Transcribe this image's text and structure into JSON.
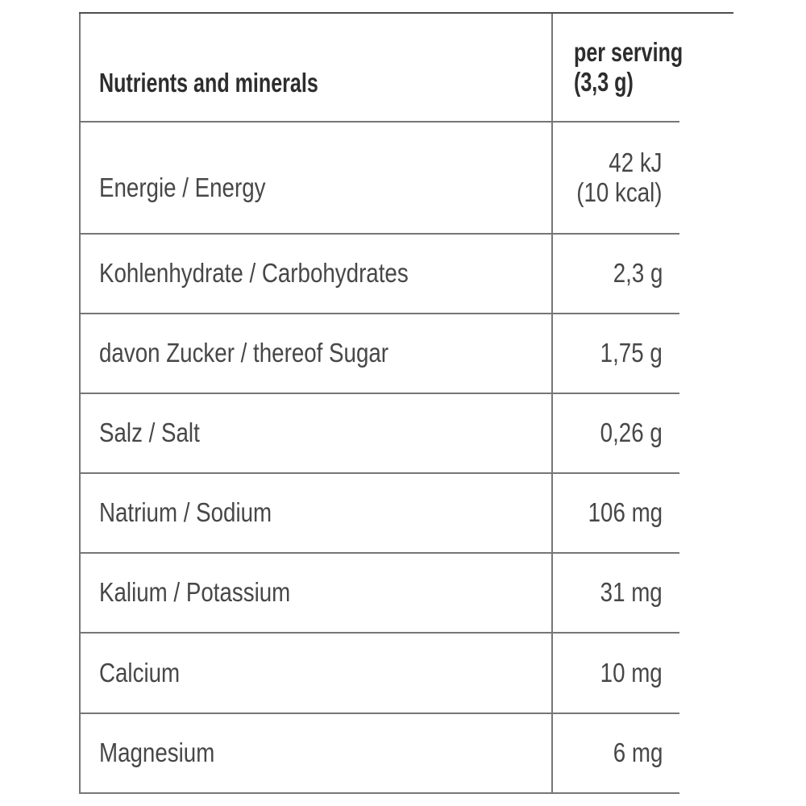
{
  "table": {
    "columns": {
      "nutrient_header": "Nutrients and minerals",
      "serving_header_line1": "per serving",
      "serving_header_line2": "(3,3 g)"
    },
    "rows": [
      {
        "label": "Energie / Energy",
        "value_line1": "42 kJ",
        "value_line2": "(10 kcal)"
      },
      {
        "label": "Kohlenhydrate / Carbohydrates",
        "value": "2,3 g"
      },
      {
        "label": "davon Zucker / thereof Sugar",
        "value": "1,75 g"
      },
      {
        "label": "Salz / Salt",
        "value": "0,26 g"
      },
      {
        "label": "Natrium / Sodium",
        "value": "106 mg"
      },
      {
        "label": "Kalium / Potassium",
        "value": "31 mg"
      },
      {
        "label": "Calcium",
        "value": "10 mg"
      },
      {
        "label": "Magnesium",
        "value": "6 mg"
      }
    ],
    "colors": {
      "border": "#767676",
      "top_border": "#4f4f4f",
      "header_text": "#2d2d2d",
      "body_text": "#474747",
      "background": "#ffffff"
    }
  }
}
